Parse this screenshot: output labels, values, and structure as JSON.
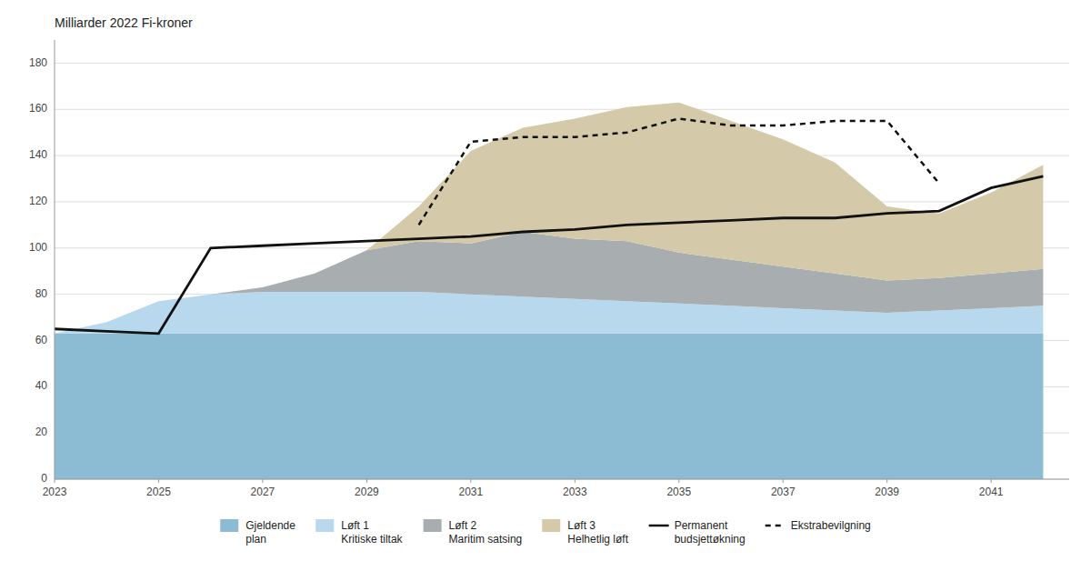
{
  "chart_data": {
    "type": "area",
    "title": "Milliarder 2022 Fi-kroner",
    "stacked": true,
    "grid": true,
    "legend": "bottom",
    "x": [
      2023,
      2024,
      2025,
      2026,
      2027,
      2028,
      2029,
      2030,
      2031,
      2032,
      2033,
      2034,
      2035,
      2036,
      2037,
      2038,
      2039,
      2040,
      2041,
      2042
    ],
    "xlim": [
      2023,
      2042.5
    ],
    "xticks": [
      2023,
      2025,
      2027,
      2029,
      2031,
      2033,
      2035,
      2037,
      2039,
      2041
    ],
    "ylim": [
      0,
      190
    ],
    "yticks": [
      0,
      20,
      40,
      60,
      80,
      100,
      120,
      140,
      160,
      180
    ],
    "series": [
      {
        "name": "Gjeldende\nplan",
        "type": "area",
        "color": "#8bbcd4",
        "values": [
          63,
          63,
          63,
          63,
          63,
          63,
          63,
          63,
          63,
          63,
          63,
          63,
          63,
          63,
          63,
          63,
          63,
          63,
          63,
          63
        ]
      },
      {
        "name": "Løft 1\nKritiske tiltak",
        "type": "area",
        "color": "#b8d9ed",
        "values": [
          0,
          5,
          14,
          17,
          18,
          18,
          18,
          18,
          17,
          16,
          15,
          14,
          13,
          12,
          11,
          10,
          9,
          10,
          11,
          12
        ]
      },
      {
        "name": "Løft 2\nMaritim satsing",
        "type": "area",
        "color": "#a8adb0",
        "values": [
          0,
          0,
          0,
          0,
          2,
          8,
          18,
          22,
          22,
          28,
          26,
          26,
          22,
          20,
          18,
          16,
          14,
          14,
          15,
          16
        ]
      },
      {
        "name": "Løft 3\nHelhetlig løft",
        "type": "area",
        "color": "#d4c9a8",
        "values": [
          0,
          0,
          0,
          0,
          0,
          0,
          0,
          15,
          40,
          45,
          52,
          58,
          65,
          60,
          55,
          48,
          32,
          28,
          35,
          45
        ]
      },
      {
        "name": "Permanent\nbudsjettøkning",
        "type": "line",
        "line_style": "solid",
        "color": "#111111",
        "values": [
          65,
          64,
          63,
          100,
          101,
          102,
          103,
          104,
          105,
          107,
          108,
          110,
          111,
          112,
          113,
          113,
          115,
          116,
          126,
          131
        ]
      },
      {
        "name": "Ekstrabevilgning",
        "type": "line",
        "line_style": "dotted",
        "color": "#111111",
        "values": [
          null,
          null,
          null,
          null,
          null,
          null,
          null,
          110,
          146,
          148,
          148,
          150,
          156,
          153,
          153,
          155,
          155,
          128,
          null,
          null
        ]
      }
    ]
  }
}
